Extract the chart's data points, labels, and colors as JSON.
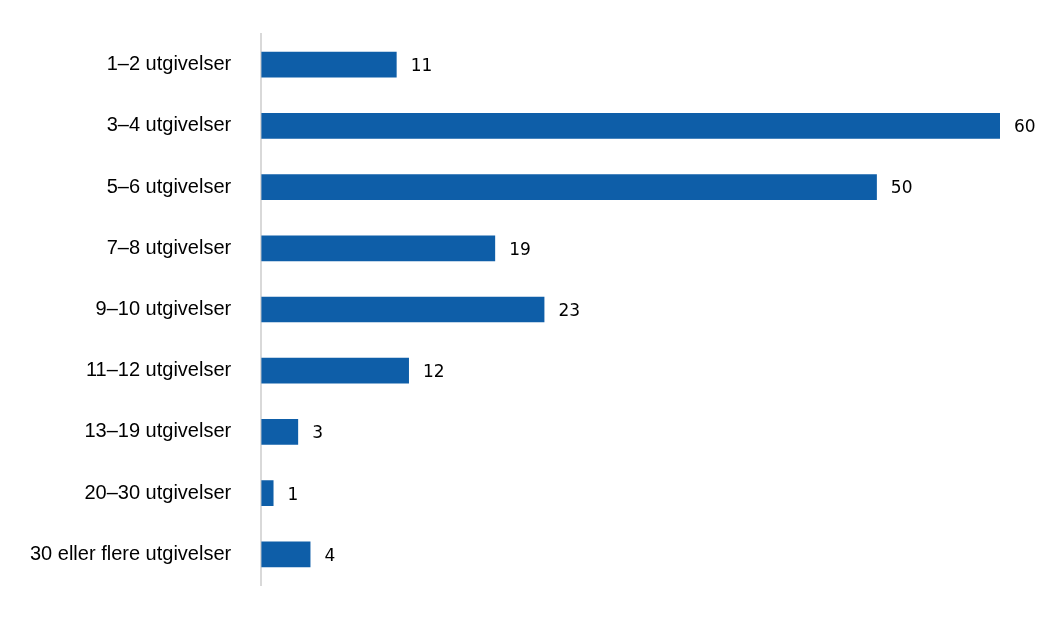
{
  "chart_data": {
    "type": "bar",
    "orientation": "horizontal",
    "categories": [
      "1–2 utgivelser",
      "3–4 utgivelser",
      "5–6 utgivelser",
      "7–8 utgivelser",
      "9–10 utgivelser",
      "11–12 utgivelser",
      "13–19 utgivelser",
      "20–30 utgivelser",
      "30 eller flere utgivelser"
    ],
    "values": [
      11,
      60,
      50,
      19,
      23,
      12,
      3,
      1,
      4
    ],
    "color": "#0e5ea8",
    "xlim": [
      0,
      60
    ],
    "data_labels": true,
    "legend": false,
    "tick_labels": "y"
  }
}
